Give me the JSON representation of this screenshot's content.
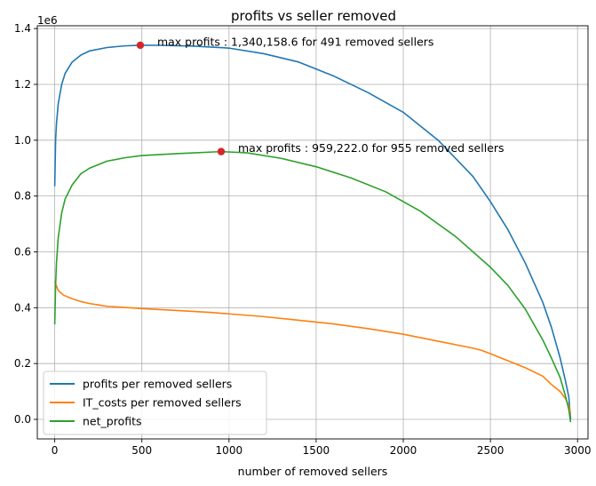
{
  "chart_data": {
    "type": "line",
    "title": "profits vs seller removed",
    "xlabel": "number of removed sellers",
    "ylabel": "",
    "y_scale_label": "1e6",
    "xlim": [
      -100,
      3060
    ],
    "ylim": [
      -70000,
      1410000
    ],
    "x_ticks": [
      0,
      500,
      1000,
      1500,
      2000,
      2500,
      3000
    ],
    "x_tick_labels": [
      "0",
      "500",
      "1000",
      "1500",
      "2000",
      "2500",
      "3000"
    ],
    "y_ticks": [
      0,
      200000,
      400000,
      600000,
      800000,
      1000000,
      1200000,
      1400000
    ],
    "y_tick_labels": [
      "0.0",
      "0.2",
      "0.4",
      "0.6",
      "0.8",
      "1.0",
      "1.2",
      "1.4"
    ],
    "grid": true,
    "legend_position": "lower-left",
    "series": [
      {
        "name": "profits per removed sellers",
        "color": "#1f77b4",
        "x": [
          0,
          5,
          10,
          20,
          40,
          60,
          100,
          150,
          200,
          300,
          400,
          491,
          600,
          800,
          1000,
          1200,
          1400,
          1600,
          1800,
          2000,
          2200,
          2400,
          2500,
          2600,
          2700,
          2800,
          2850,
          2900,
          2930,
          2950,
          2960
        ],
        "y": [
          835000,
          1000000,
          1060000,
          1130000,
          1200000,
          1240000,
          1280000,
          1305000,
          1320000,
          1332000,
          1338000,
          1340158.6,
          1340000,
          1337000,
          1330000,
          1310000,
          1280000,
          1230000,
          1170000,
          1100000,
          1000000,
          870000,
          780000,
          680000,
          560000,
          420000,
          330000,
          220000,
          140000,
          80000,
          0
        ]
      },
      {
        "name": "IT_costs per removed sellers",
        "color": "#ff7f0e",
        "x": [
          0,
          5,
          20,
          50,
          100,
          150,
          200,
          250,
          300,
          500,
          700,
          900,
          1000,
          1200,
          1400,
          1600,
          1800,
          2000,
          2200,
          2400,
          2450,
          2500,
          2600,
          2700,
          2800,
          2850,
          2900,
          2930,
          2950,
          2960
        ],
        "y": [
          495000,
          485000,
          462000,
          445000,
          432000,
          422000,
          415000,
          410000,
          405000,
          397000,
          390000,
          383000,
          378000,
          368000,
          355000,
          342000,
          325000,
          305000,
          280000,
          255000,
          247000,
          235000,
          210000,
          185000,
          155000,
          125000,
          100000,
          75000,
          50000,
          20000
        ]
      },
      {
        "name": "net_profits",
        "color": "#2ca02c",
        "x": [
          0,
          5,
          10,
          20,
          40,
          60,
          100,
          150,
          200,
          300,
          400,
          500,
          700,
          955,
          1100,
          1300,
          1500,
          1700,
          1900,
          2100,
          2300,
          2500,
          2600,
          2700,
          2800,
          2850,
          2900,
          2930,
          2950,
          2960
        ],
        "y": [
          340000,
          480000,
          560000,
          650000,
          740000,
          790000,
          840000,
          880000,
          900000,
          925000,
          937000,
          945000,
          952000,
          959222,
          955000,
          935000,
          905000,
          865000,
          815000,
          745000,
          655000,
          545000,
          480000,
          395000,
          285000,
          220000,
          150000,
          85000,
          35000,
          -10000
        ]
      }
    ],
    "points": [
      {
        "x": 491,
        "y": 1340158.6,
        "color": "#d62728"
      },
      {
        "x": 955,
        "y": 959222.0,
        "color": "#d62728"
      }
    ],
    "annotations": [
      {
        "text": "max profits : 1,340,158.6 for 491 removed sellers",
        "x": 491,
        "y": 1340158.6
      },
      {
        "text": "max profits : 959,222.0 for 955 removed sellers",
        "x": 955,
        "y": 959222.0
      }
    ]
  }
}
